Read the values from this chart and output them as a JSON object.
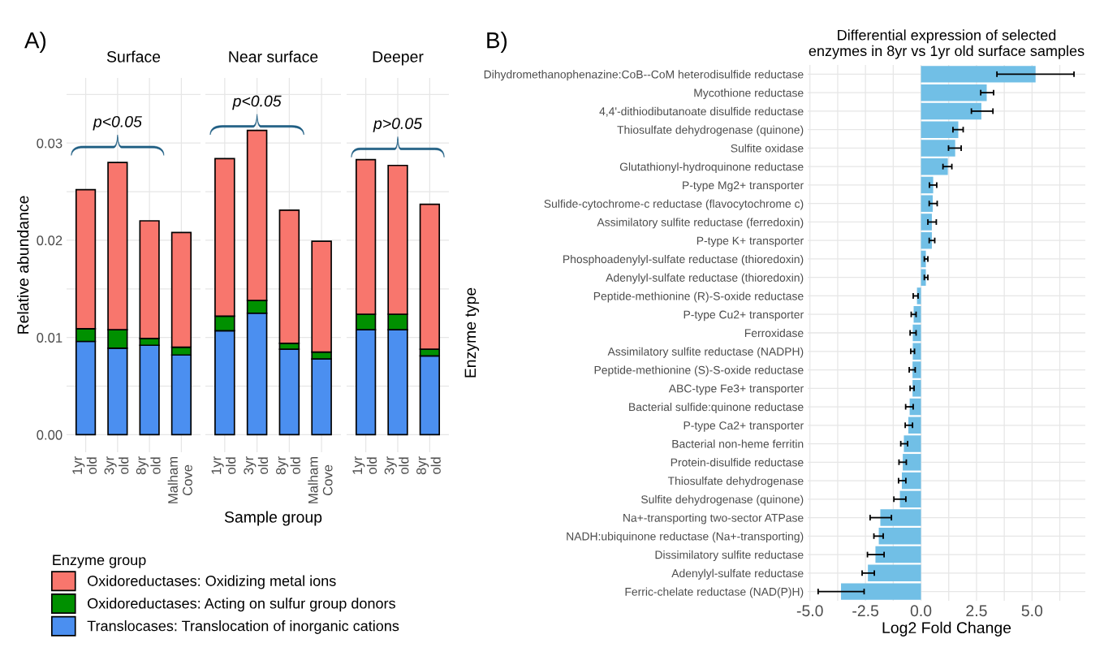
{
  "chart_data": [
    {
      "type": "bar",
      "stacked": true,
      "title": "Surface",
      "ylabel": "Relative abundance",
      "legend_title": "Enzyme group",
      "legend": "bottom",
      "grid": true,
      "annotations": [
        "A)",
        "p<0.05"
      ],
      "categories": [
        "1yr old",
        "3yr old",
        "8yr old",
        "Malham Cove"
      ],
      "ylim": [
        -0.0018,
        0.0367
      ],
      "yticks": [
        {
          "value": 0,
          "label": "0.00"
        },
        {
          "value": 0.005,
          "label": null
        },
        {
          "value": 0.01,
          "label": "0.01"
        },
        {
          "value": 0.015,
          "label": null
        },
        {
          "value": 0.02,
          "label": "0.02"
        },
        {
          "value": 0.025,
          "label": null
        },
        {
          "value": 0.03,
          "label": "0.03"
        },
        {
          "value": 0.035,
          "label": null
        }
      ],
      "series": [
        {
          "name": "Translocases: Translocation of inorganic cations",
          "color": "#4b8ff0",
          "values": [
            0.0096,
            0.0089,
            0.0092,
            0.0082
          ]
        },
        {
          "name": "Oxidoreductases: Acting on sulfur group donors",
          "color": "#009000",
          "values": [
            0.0013,
            0.0019,
            0.0007,
            0.0008
          ]
        },
        {
          "name": "Oxidoreductases: Oxidizing metal ions",
          "color": "#f8766d",
          "values": [
            0.0143,
            0.0172,
            0.0121,
            0.0118
          ]
        }
      ]
    },
    {
      "type": "bar",
      "stacked": true,
      "title": "Near surface",
      "xlabel": "Sample group",
      "grid": true,
      "tick_labels": "x",
      "annotations": [
        "p<0.05"
      ],
      "categories": [
        "1yr old",
        "3yr old",
        "8yr old",
        "Malham Cove"
      ],
      "ylim": [
        -0.0018,
        0.0367
      ],
      "yticks": [
        0,
        0.005,
        0.01,
        0.015,
        0.02,
        0.025,
        0.03,
        0.035
      ],
      "series": [
        {
          "color": "#4b8ff0",
          "values": [
            0.0107,
            0.0125,
            0.0088,
            0.0078
          ]
        },
        {
          "color": "#009000",
          "values": [
            0.0015,
            0.0013,
            0.0006,
            0.0007
          ]
        },
        {
          "color": "#f8766d",
          "values": [
            0.0162,
            0.0175,
            0.0137,
            0.0114
          ]
        }
      ]
    },
    {
      "type": "bar",
      "stacked": true,
      "title": "Deeper",
      "grid": true,
      "tick_labels": "x",
      "annotations": [
        "p>0.05"
      ],
      "categories": [
        "1yr old",
        "3yr old",
        "8yr old"
      ],
      "ylim": [
        -0.0018,
        0.0367
      ],
      "yticks": [
        0,
        0.005,
        0.01,
        0.015,
        0.02,
        0.025,
        0.03,
        0.035
      ],
      "series": [
        {
          "color": "#4b8ff0",
          "values": [
            0.0108,
            0.0108,
            0.0081
          ]
        },
        {
          "color": "#009000",
          "values": [
            0.0016,
            0.0016,
            0.0007
          ]
        },
        {
          "color": "#f8766d",
          "values": [
            0.0159,
            0.0153,
            0.0149
          ]
        }
      ]
    },
    {
      "type": "bar",
      "orientation": "horizontal",
      "title": "Differential expression of selected\nenzymes in 8yr vs 1yr old surface samples",
      "xlabel": "Log2 Fold Change",
      "ylabel": "Enzyme type",
      "grid": true,
      "color": "#71bfe6",
      "annotations": [
        "B)"
      ],
      "categories": [
        "Dihydromethanophenazine:CoB--CoM heterodisulfide reductase",
        "Mycothione reductase",
        "4,4'-dithiodibutanoate disulfide reductase",
        "Thiosulfate dehydrogenase (quinone)",
        "Sulfite oxidase",
        "Glutathionyl-hydroquinone reductase",
        "P-type Mg2+ transporter",
        "Sulfide-cytochrome-c reductase (flavocytochrome c)",
        "Assimilatory sulfite reductase (ferredoxin)",
        "P-type K+ transporter",
        "Phosphoadenylyl-sulfate reductase (thioredoxin)",
        "Adenylyl-sulfate reductase (thioredoxin)",
        "Peptide-methionine (R)-S-oxide reductase",
        "P-type Cu2+ transporter",
        "Ferroxidase",
        "Assimilatory sulfite reductase (NADPH)",
        "Peptide-methionine (S)-S-oxide reductase",
        "ABC-type Fe3+ transporter",
        "Bacterial sulfide:quinone reductase",
        "P-type Ca2+ transporter",
        "Bacterial non-heme ferritin",
        "Protein-disulfide reductase",
        "Thiosulfate dehydrogenase",
        "Sulfite dehydrogenase (quinone)",
        "Na+-transporting two-sector ATPase",
        "NADH:ubiquinone reductase (Na+-transporting)",
        "Dissimilatory sulfite reductase",
        "Adenylyl-sulfate reductase",
        "Ferric-chelate reductase (NAD(P)H)"
      ],
      "values": [
        5.16,
        2.96,
        2.72,
        1.68,
        1.54,
        1.21,
        0.55,
        0.53,
        0.49,
        0.49,
        0.22,
        0.22,
        -0.18,
        -0.33,
        -0.37,
        -0.37,
        -0.38,
        -0.38,
        -0.51,
        -0.57,
        -0.77,
        -0.82,
        -0.86,
        -0.95,
        -1.83,
        -1.9,
        -2.05,
        -2.39,
        -3.6
      ],
      "errors": [
        [
          3.42,
          6.89
        ],
        [
          2.69,
          3.27
        ],
        [
          2.27,
          3.24
        ],
        [
          1.44,
          1.9
        ],
        [
          1.24,
          1.81
        ],
        [
          0.99,
          1.39
        ],
        [
          0.38,
          0.71
        ],
        [
          0.37,
          0.73
        ],
        [
          0.31,
          0.69
        ],
        [
          0.37,
          0.62
        ],
        [
          0.15,
          0.31
        ],
        [
          0.15,
          0.31
        ],
        [
          -0.35,
          -0.13
        ],
        [
          -0.44,
          -0.22
        ],
        [
          -0.49,
          -0.22
        ],
        [
          -0.46,
          -0.29
        ],
        [
          -0.53,
          -0.26
        ],
        [
          -0.49,
          -0.31
        ],
        [
          -0.69,
          -0.35
        ],
        [
          -0.71,
          -0.38
        ],
        [
          -0.91,
          -0.6
        ],
        [
          -0.99,
          -0.66
        ],
        [
          -1.01,
          -0.68
        ],
        [
          -1.22,
          -0.68
        ],
        [
          -2.29,
          -1.33
        ],
        [
          -2.12,
          -1.7
        ],
        [
          -2.41,
          -1.66
        ],
        [
          -2.65,
          -2.1
        ],
        [
          -4.63,
          -2.56
        ]
      ],
      "xlim": [
        -5.1,
        7.4
      ],
      "xticks": [
        {
          "value": -5,
          "label": "-5.0"
        },
        {
          "value": -3.75,
          "label": null
        },
        {
          "value": -2.5,
          "label": "-2.5"
        },
        {
          "value": -1.25,
          "label": null
        },
        {
          "value": 0,
          "label": "0.0"
        },
        {
          "value": 1.25,
          "label": null
        },
        {
          "value": 2.5,
          "label": "2.5"
        },
        {
          "value": 3.75,
          "label": null
        },
        {
          "value": 5,
          "label": "5.0"
        },
        {
          "value": 6.25,
          "label": null
        }
      ]
    }
  ]
}
